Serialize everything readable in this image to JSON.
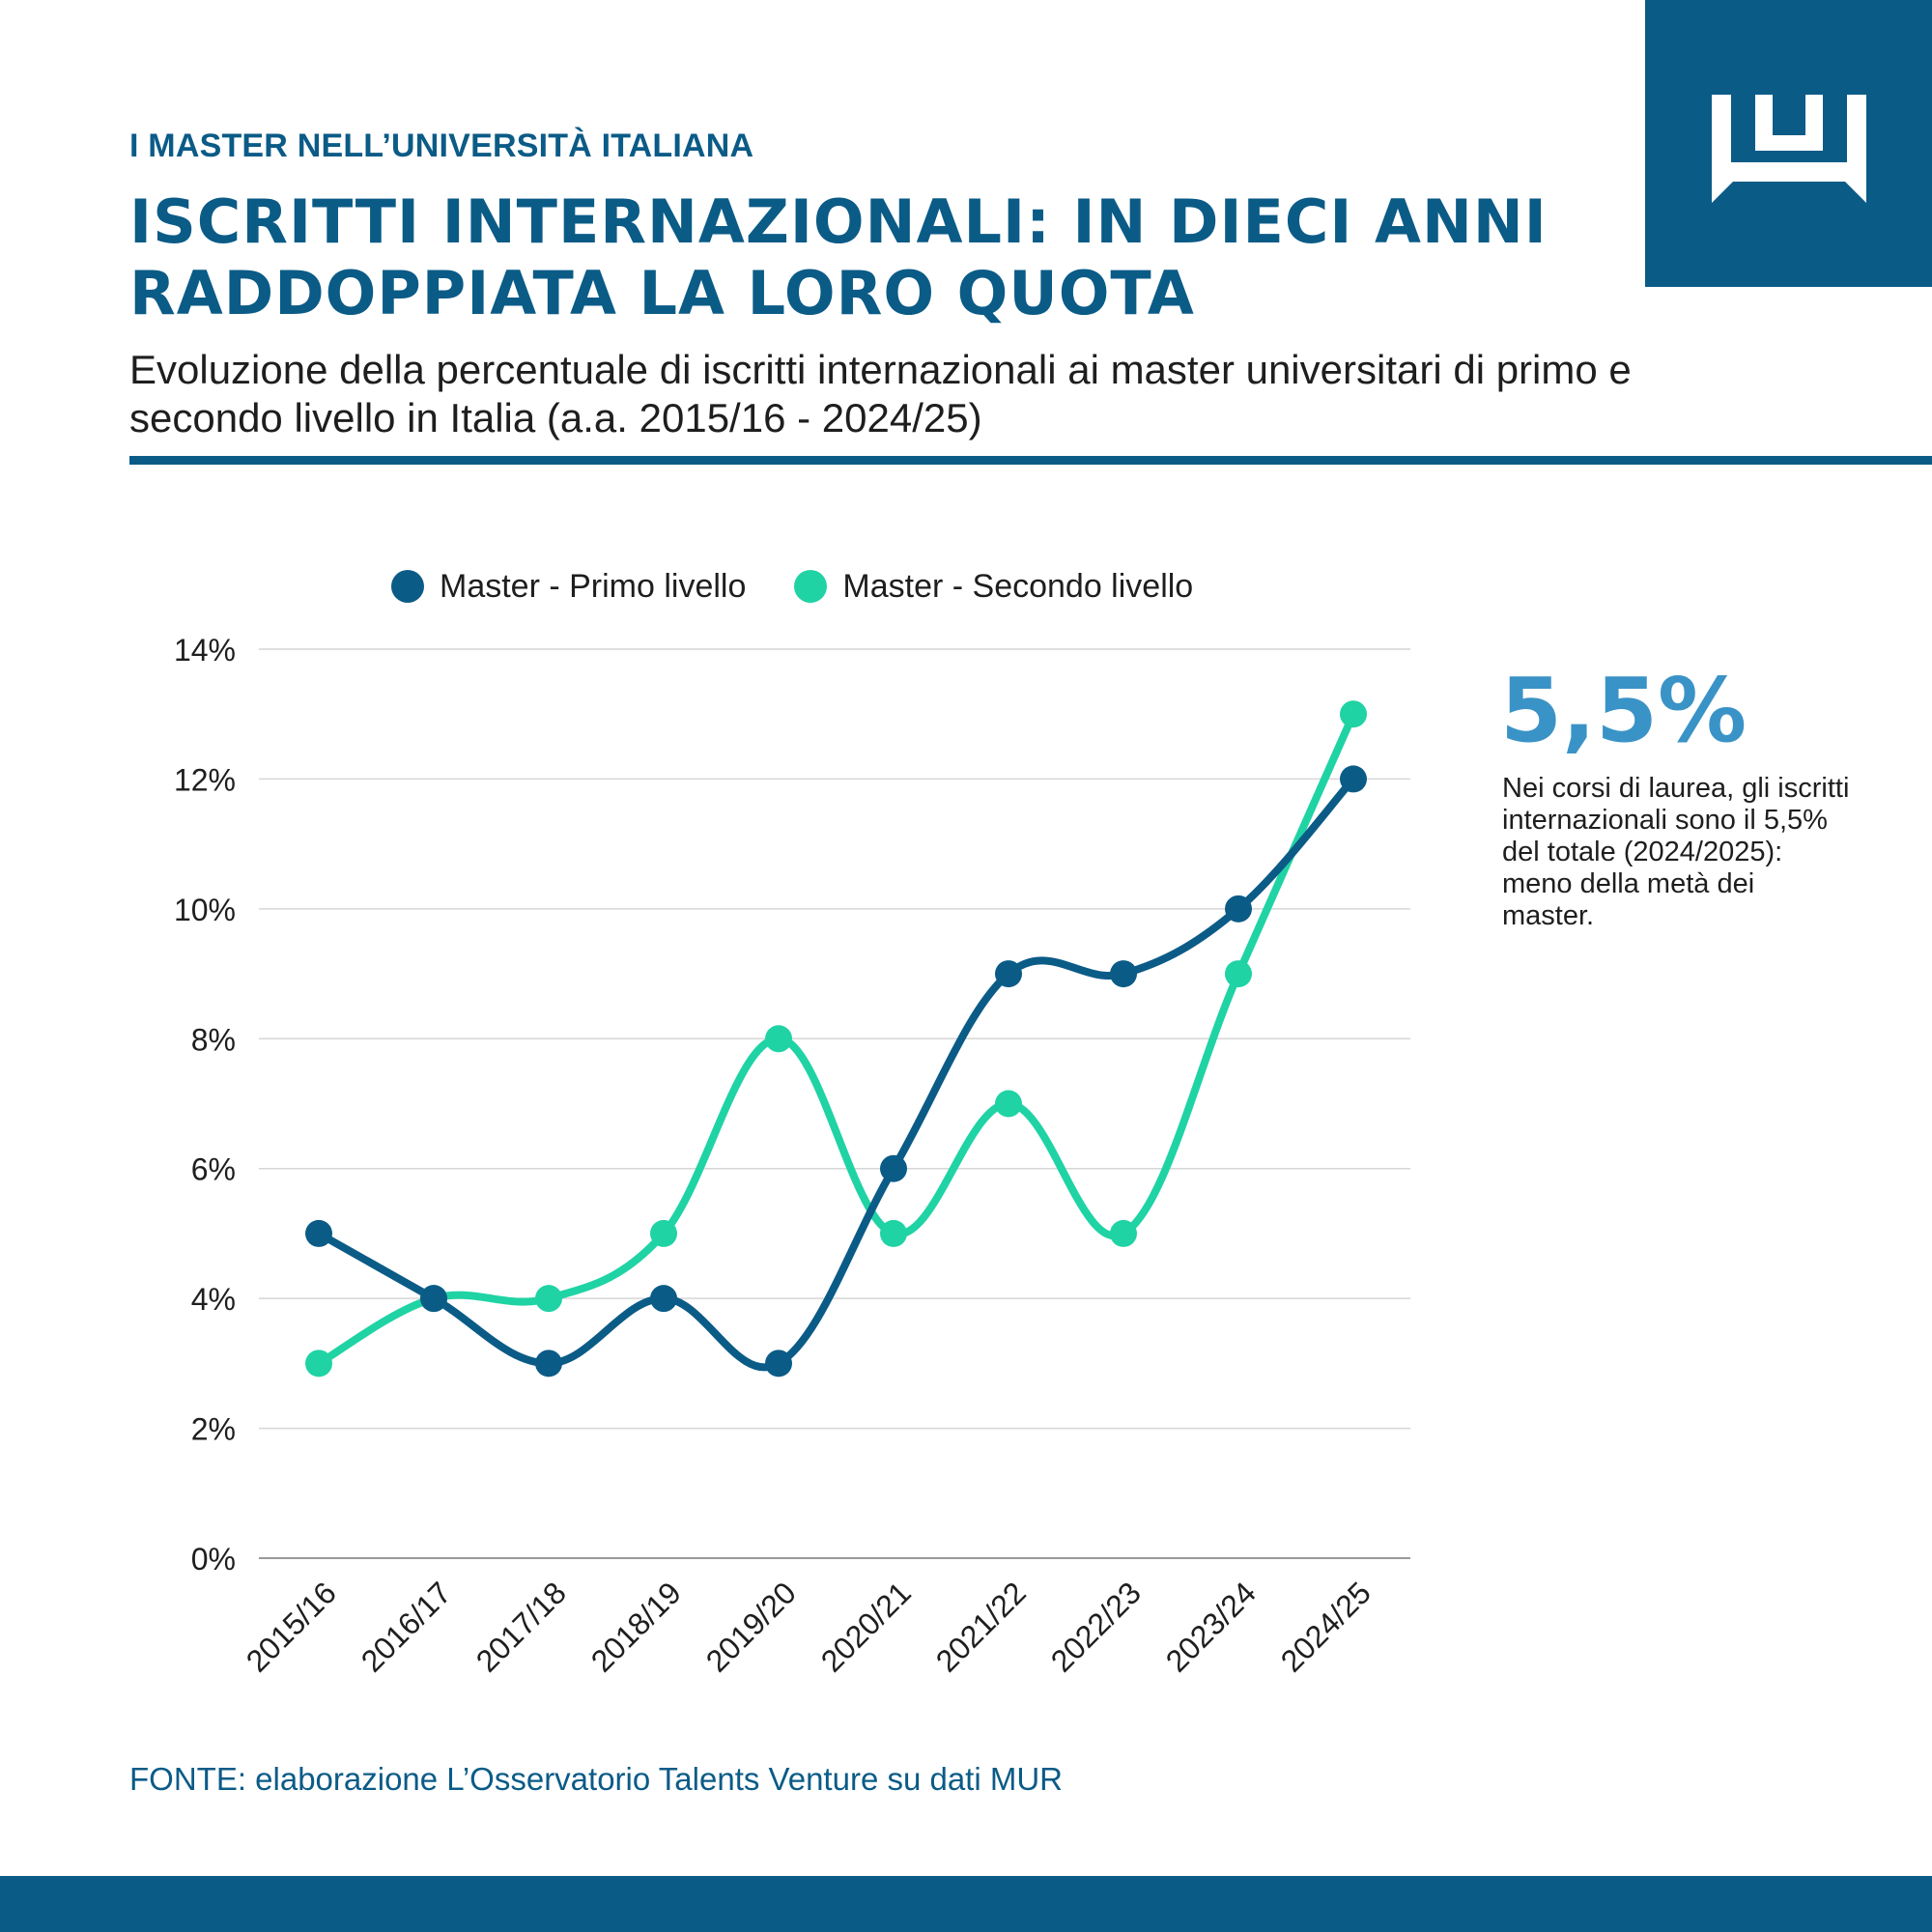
{
  "header": {
    "kicker": "I MASTER NELL’UNIVERSITÀ ITALIANA",
    "title": "ISCRITTI INTERNAZIONALI: IN DIECI ANNI RADDOPPIATA LA LORO QUOTA",
    "subtitle": "Evoluzione della percentuale di iscritti internazionali ai master universitari di primo e secondo livello in Italia (a.a. 2015/16 - 2024/25)"
  },
  "logo": {
    "icon": "crown-icon",
    "color": "#ffffff",
    "background": "#0b5b87"
  },
  "chart_data": {
    "type": "line",
    "title": "",
    "xlabel": "",
    "ylabel": "",
    "categories": [
      "2015/16",
      "2016/17",
      "2017/18",
      "2018/19",
      "2019/20",
      "2020/21",
      "2021/22",
      "2022/23",
      "2023/24",
      "2024/25"
    ],
    "series": [
      {
        "name": "Master - Primo livello",
        "color": "#0b5b87",
        "values": [
          5,
          4,
          3,
          4,
          3,
          6,
          9,
          9,
          10,
          12
        ]
      },
      {
        "name": "Master - Secondo livello",
        "color": "#1fd3a4",
        "values": [
          3,
          4,
          4,
          5,
          8,
          5,
          7,
          5,
          9,
          13
        ]
      }
    ],
    "ylim": [
      0,
      14
    ],
    "yticks": [
      0,
      2,
      4,
      6,
      8,
      10,
      12,
      14
    ],
    "ytick_suffix": "%",
    "grid": true,
    "smooth": true,
    "legend_position": "top"
  },
  "callout": {
    "value": "5,5%",
    "text": "Nei corsi di laurea, gli iscritti internazionali sono il 5,5% del totale (2024/2025): meno della metà dei master.",
    "color": "#3a93c6"
  },
  "source": "FONTE: elaborazione L’Osservatorio Talents Venture su dati MUR",
  "colors": {
    "brand": "#0b5b87",
    "text": "#1e1e1e",
    "grid": "#d6d6d6"
  }
}
